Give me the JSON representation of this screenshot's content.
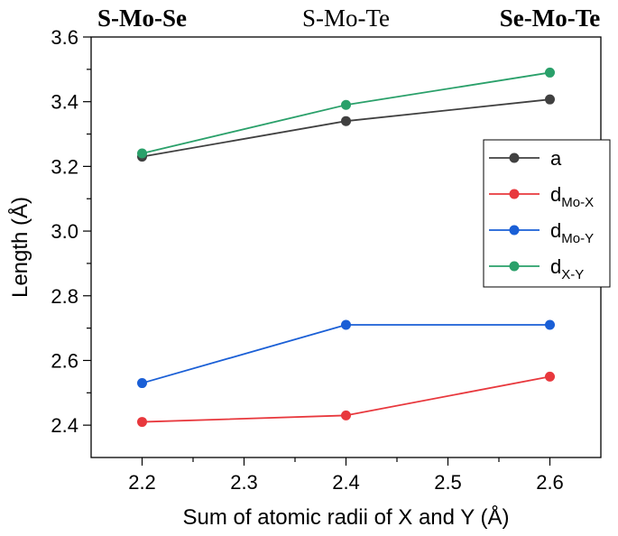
{
  "chart_data": {
    "type": "line",
    "x": [
      2.2,
      2.4,
      2.6
    ],
    "xlabel": "Sum of atomic radii of X and Y (Å)",
    "ylabel": "Length (Å)",
    "xlim": [
      2.15,
      2.65
    ],
    "ylim": [
      2.3,
      3.6
    ],
    "xticks": [
      2.2,
      2.3,
      2.4,
      2.5,
      2.6
    ],
    "yticks": [
      2.4,
      2.6,
      2.8,
      3.0,
      3.2,
      3.4,
      3.6
    ],
    "xtick_labels": [
      "2.2",
      "2.3",
      "2.4",
      "2.5",
      "2.6"
    ],
    "ytick_labels": [
      "2.4",
      "2.6",
      "2.8",
      "3.0",
      "3.2",
      "3.4",
      "3.6"
    ],
    "grid": false,
    "legend_position": "right",
    "top_labels": [
      {
        "text": "S-Mo-Se",
        "x": 2.2,
        "bold": true
      },
      {
        "text": "S-Mo-Te",
        "x": 2.4,
        "bold": false
      },
      {
        "text": "Se-Mo-Te",
        "x": 2.6,
        "bold": true
      }
    ],
    "series": [
      {
        "name": "a",
        "name_main": "a",
        "name_sub": "",
        "color": "#404040",
        "values": [
          3.23,
          3.34,
          3.407
        ]
      },
      {
        "name": "dMo-X",
        "name_main": "d",
        "name_sub": "Mo-X",
        "color": "#e8383d",
        "values": [
          2.41,
          2.43,
          2.55
        ]
      },
      {
        "name": "dMo-Y",
        "name_main": "d",
        "name_sub": "Mo-Y",
        "color": "#1a5fd6",
        "values": [
          2.53,
          2.71,
          2.71
        ]
      },
      {
        "name": "dX-Y",
        "name_main": "d",
        "name_sub": "X-Y",
        "color": "#2aa06a",
        "values": [
          3.24,
          3.39,
          3.49
        ]
      }
    ]
  }
}
